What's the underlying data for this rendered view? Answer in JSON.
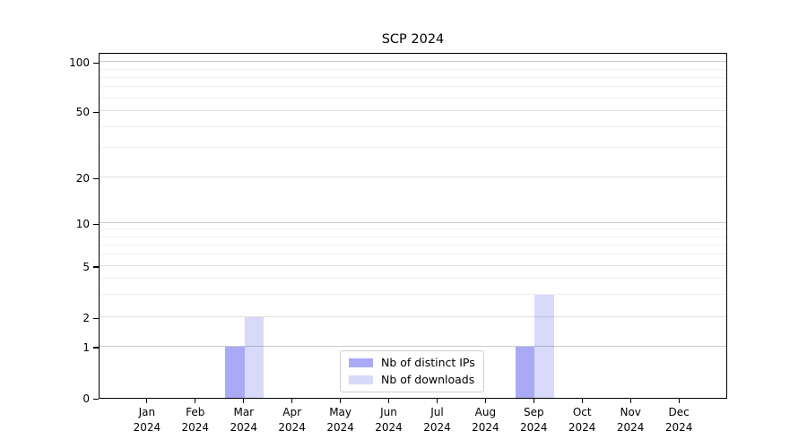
{
  "chart_data": {
    "type": "bar",
    "title": "SCP 2024",
    "categories": [
      "Jan 2024",
      "Feb 2024",
      "Mar 2024",
      "Apr 2024",
      "May 2024",
      "Jun 2024",
      "Jul 2024",
      "Aug 2024",
      "Sep 2024",
      "Oct 2024",
      "Nov 2024",
      "Dec 2024"
    ],
    "series": [
      {
        "name": "Nb of distinct IPs",
        "color": "#5a5aeb",
        "alpha": 0.52,
        "values": [
          0,
          0,
          1,
          0,
          0,
          0,
          0,
          0,
          1,
          0,
          0,
          0
        ]
      },
      {
        "name": "Nb of downloads",
        "color": "#5a5aeb",
        "alpha": 0.23,
        "values": [
          0,
          0,
          2,
          0,
          0,
          0,
          0,
          0,
          3,
          0,
          0,
          0
        ]
      }
    ],
    "xlabel": "",
    "ylabel": "",
    "yscale": "symlog",
    "yticks": [
      0,
      1,
      2,
      5,
      10,
      20,
      50,
      100
    ],
    "ylim": [
      0,
      100
    ],
    "grid": true,
    "legend_position": "lower center inside plot"
  },
  "colors": {
    "grid_major": "#c9c9c9",
    "grid_mid": "#dedede",
    "grid_minor": "#efefef",
    "axis": "#000000",
    "legend_border": "#d0d0d0",
    "background": "#ffffff"
  }
}
